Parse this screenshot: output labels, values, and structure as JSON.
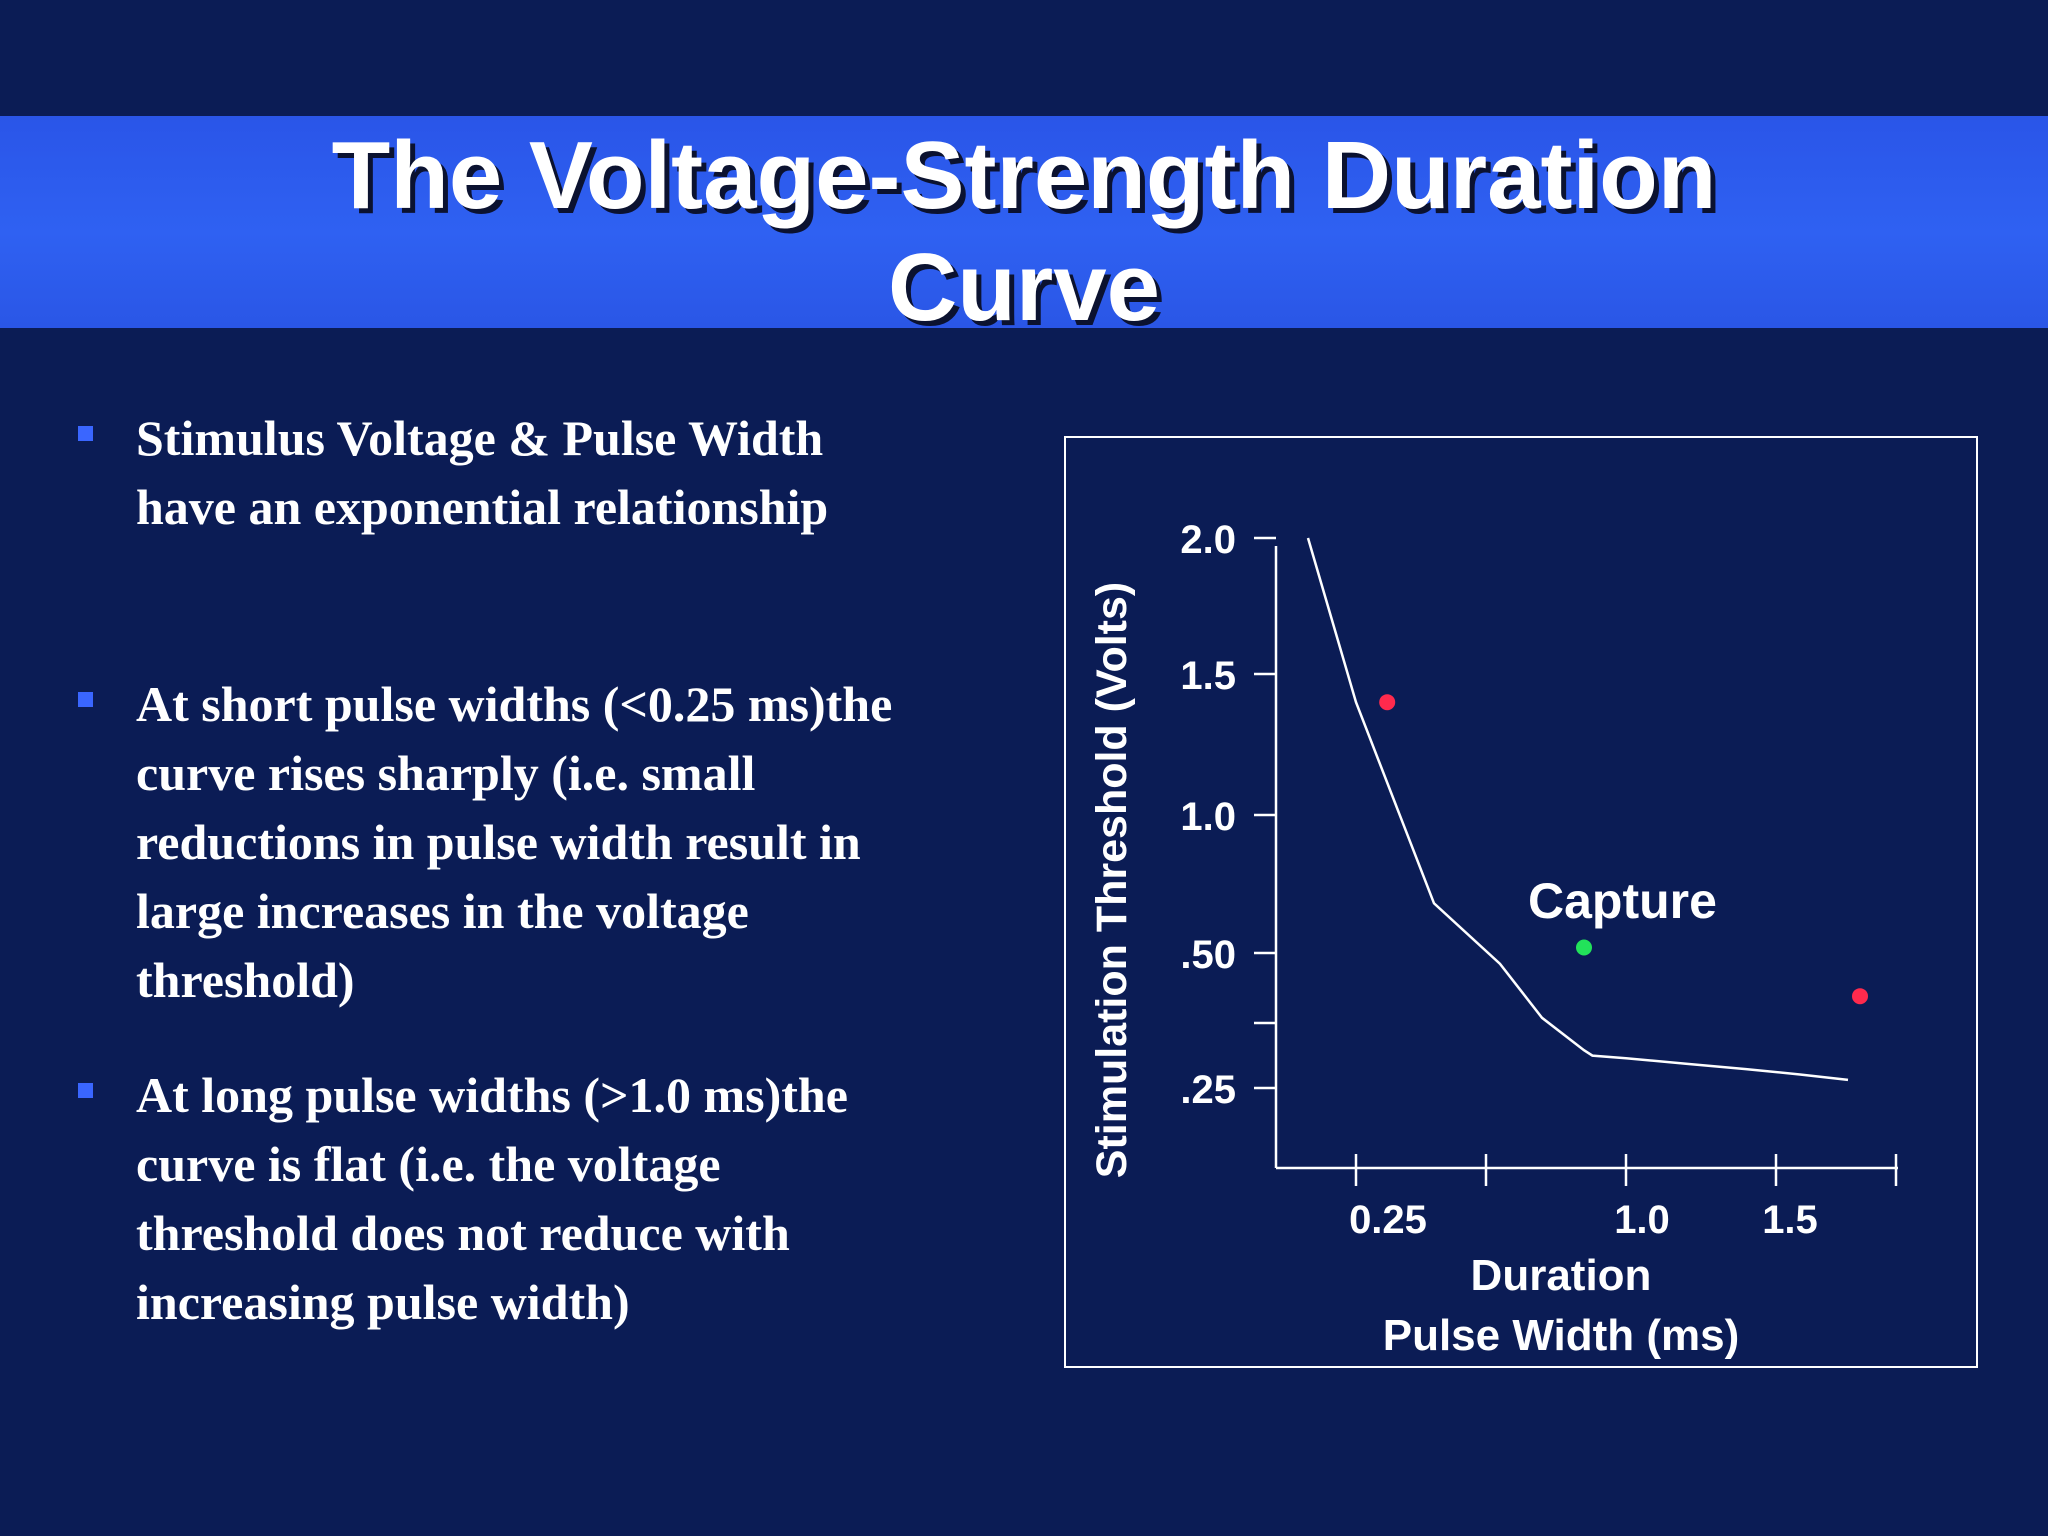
{
  "slide": {
    "title_line1": "The Voltage-Strength Duration",
    "title_line2": "Curve"
  },
  "bullets": [
    {
      "lines": [
        "Stimulus Voltage & Pulse Width",
        "have an exponential relationship"
      ]
    },
    {
      "lines": [
        "At short pulse widths (<0.25 ms)the",
        "curve rises sharply (i.e. small",
        "reductions  in pulse width result in",
        "large increases in the voltage",
        "threshold)"
      ]
    },
    {
      "lines": [
        "At long pulse widths (>1.0 ms)the",
        "curve is flat (i.e. the voltage",
        "threshold does not reduce with",
        "increasing pulse width)"
      ]
    }
  ],
  "colors": {
    "background": "#0b1c55",
    "title_band": "#2f61f2",
    "bullet_marker": "#3a66ff",
    "no_capture_dot": "#ff2a4d",
    "capture_dot": "#22e25a"
  },
  "chart_data": {
    "type": "line",
    "ylabel": "Stimulation Threshold (Volts)",
    "xlabel_line1": "Duration",
    "xlabel_line2": "Pulse Width (ms)",
    "x_ticks": [
      "0.25",
      "1.0",
      "1.5"
    ],
    "y_ticks": [
      "2.0",
      "1.5",
      "1.0",
      ".50",
      ".25"
    ],
    "curve": {
      "x": [
        0.1,
        0.25,
        0.4,
        0.55,
        0.7,
        0.85,
        0.88,
        1.0,
        1.2,
        1.4,
        1.6,
        1.8
      ],
      "y": [
        2.0,
        1.4,
        0.68,
        0.48,
        0.38,
        0.32,
        0.31,
        0.305,
        0.295,
        0.285,
        0.275,
        0.265
      ]
    },
    "points": [
      {
        "x": 0.31,
        "y": 1.4,
        "status": "no-capture"
      },
      {
        "x": 0.85,
        "y": 0.52,
        "status": "capture"
      },
      {
        "x": 1.85,
        "y": 0.42,
        "status": "no-capture"
      }
    ],
    "annotation": "Capture",
    "grid": false
  }
}
